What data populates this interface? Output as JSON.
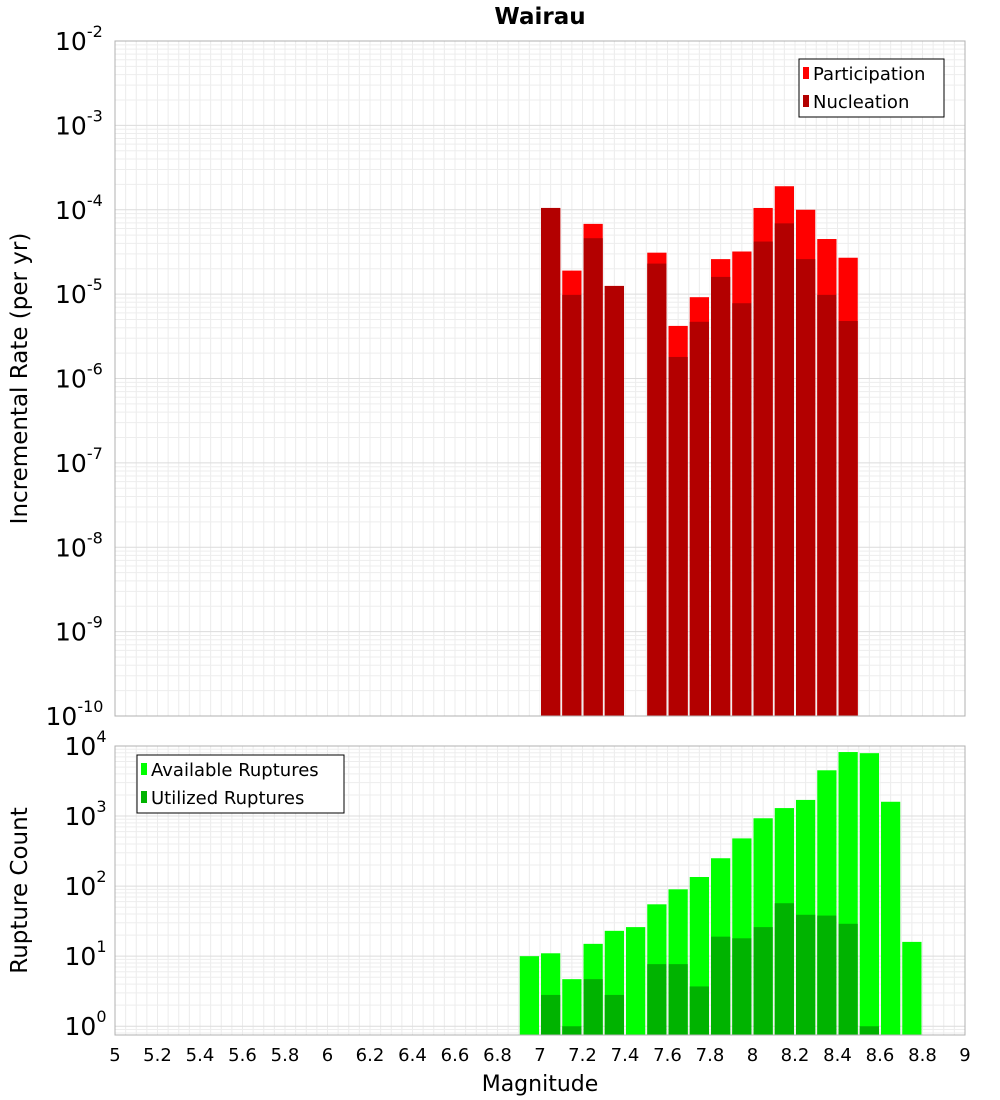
{
  "chart_data": [
    {
      "type": "bar",
      "title": "Wairau",
      "xlabel": "",
      "ylabel": "Incremental Rate (per yr)",
      "yscale": "log",
      "ylim": [
        1e-10,
        0.01
      ],
      "xlim": [
        5,
        9
      ],
      "grid": true,
      "legend_position": "top-right",
      "bin_width": 0.1,
      "y_tick_labels": [
        {
          "base": "10",
          "exp": "-10"
        },
        {
          "base": "10",
          "exp": "-9"
        },
        {
          "base": "10",
          "exp": "-8"
        },
        {
          "base": "10",
          "exp": "-7"
        },
        {
          "base": "10",
          "exp": "-6"
        },
        {
          "base": "10",
          "exp": "-5"
        },
        {
          "base": "10",
          "exp": "-4"
        },
        {
          "base": "10",
          "exp": "-3"
        },
        {
          "base": "10",
          "exp": "-2"
        }
      ],
      "series": [
        {
          "name": "Participation",
          "color": "#ff0000",
          "points": [
            {
              "x": 7.05,
              "y": 0.000105
            },
            {
              "x": 7.15,
              "y": 1.9e-05
            },
            {
              "x": 7.25,
              "y": 6.8e-05
            },
            {
              "x": 7.35,
              "y": 1.25e-05
            },
            {
              "x": 7.55,
              "y": 3.1e-05
            },
            {
              "x": 7.65,
              "y": 4.2e-06
            },
            {
              "x": 7.75,
              "y": 9.2e-06
            },
            {
              "x": 7.85,
              "y": 2.6e-05
            },
            {
              "x": 7.95,
              "y": 3.2e-05
            },
            {
              "x": 8.05,
              "y": 0.000105
            },
            {
              "x": 8.15,
              "y": 0.00019
            },
            {
              "x": 8.25,
              "y": 0.0001
            },
            {
              "x": 8.35,
              "y": 4.5e-05
            },
            {
              "x": 8.45,
              "y": 2.7e-05
            }
          ]
        },
        {
          "name": "Nucleation",
          "color": "#b30000",
          "points": [
            {
              "x": 7.05,
              "y": 0.000105
            },
            {
              "x": 7.15,
              "y": 9.8e-06
            },
            {
              "x": 7.25,
              "y": 4.6e-05
            },
            {
              "x": 7.35,
              "y": 1.25e-05
            },
            {
              "x": 7.55,
              "y": 2.3e-05
            },
            {
              "x": 7.65,
              "y": 1.8e-06
            },
            {
              "x": 7.75,
              "y": 4.7e-06
            },
            {
              "x": 7.85,
              "y": 1.6e-05
            },
            {
              "x": 7.95,
              "y": 7.8e-06
            },
            {
              "x": 8.05,
              "y": 4.2e-05
            },
            {
              "x": 8.15,
              "y": 6.9e-05
            },
            {
              "x": 8.25,
              "y": 2.6e-05
            },
            {
              "x": 8.35,
              "y": 9.8e-06
            },
            {
              "x": 8.45,
              "y": 4.8e-06
            }
          ]
        }
      ]
    },
    {
      "type": "bar",
      "title": "",
      "xlabel": "Magnitude",
      "ylabel": "Rupture Count",
      "yscale": "log",
      "ylim": [
        0.75,
        10000
      ],
      "xlim": [
        5,
        9
      ],
      "grid": true,
      "legend_position": "top-left",
      "bin_width": 0.1,
      "x_tick_labels": [
        "5",
        "5.2",
        "5.4",
        "5.6",
        "5.8",
        "6",
        "6.2",
        "6.4",
        "6.6",
        "6.8",
        "7",
        "7.2",
        "7.4",
        "7.6",
        "7.8",
        "8",
        "8.2",
        "8.4",
        "8.6",
        "8.8",
        "9"
      ],
      "y_tick_labels": [
        {
          "base": "10",
          "exp": "0"
        },
        {
          "base": "10",
          "exp": "1"
        },
        {
          "base": "10",
          "exp": "2"
        },
        {
          "base": "10",
          "exp": "3"
        },
        {
          "base": "10",
          "exp": "4"
        }
      ],
      "series": [
        {
          "name": "Available Ruptures",
          "color": "#00ff00",
          "points": [
            {
              "x": 6.95,
              "y": 10
            },
            {
              "x": 7.05,
              "y": 11
            },
            {
              "x": 7.15,
              "y": 4.7
            },
            {
              "x": 7.25,
              "y": 15
            },
            {
              "x": 7.35,
              "y": 23
            },
            {
              "x": 7.45,
              "y": 26
            },
            {
              "x": 7.55,
              "y": 55
            },
            {
              "x": 7.65,
              "y": 90
            },
            {
              "x": 7.75,
              "y": 135
            },
            {
              "x": 7.85,
              "y": 250
            },
            {
              "x": 7.95,
              "y": 480
            },
            {
              "x": 8.05,
              "y": 930
            },
            {
              "x": 8.15,
              "y": 1300
            },
            {
              "x": 8.25,
              "y": 1700
            },
            {
              "x": 8.35,
              "y": 4500
            },
            {
              "x": 8.45,
              "y": 8200
            },
            {
              "x": 8.55,
              "y": 7900
            },
            {
              "x": 8.65,
              "y": 1600
            },
            {
              "x": 8.75,
              "y": 16
            }
          ]
        },
        {
          "name": "Utilized Ruptures",
          "color": "#00b300",
          "points": [
            {
              "x": 7.05,
              "y": 2.8
            },
            {
              "x": 7.15,
              "y": 1
            },
            {
              "x": 7.25,
              "y": 4.7
            },
            {
              "x": 7.35,
              "y": 2.8
            },
            {
              "x": 7.55,
              "y": 7.7
            },
            {
              "x": 7.65,
              "y": 7.7
            },
            {
              "x": 7.75,
              "y": 3.7
            },
            {
              "x": 7.85,
              "y": 19
            },
            {
              "x": 7.95,
              "y": 18
            },
            {
              "x": 8.05,
              "y": 26
            },
            {
              "x": 8.15,
              "y": 57
            },
            {
              "x": 8.25,
              "y": 39
            },
            {
              "x": 8.35,
              "y": 38
            },
            {
              "x": 8.45,
              "y": 29
            },
            {
              "x": 8.55,
              "y": 1
            }
          ]
        }
      ]
    }
  ]
}
